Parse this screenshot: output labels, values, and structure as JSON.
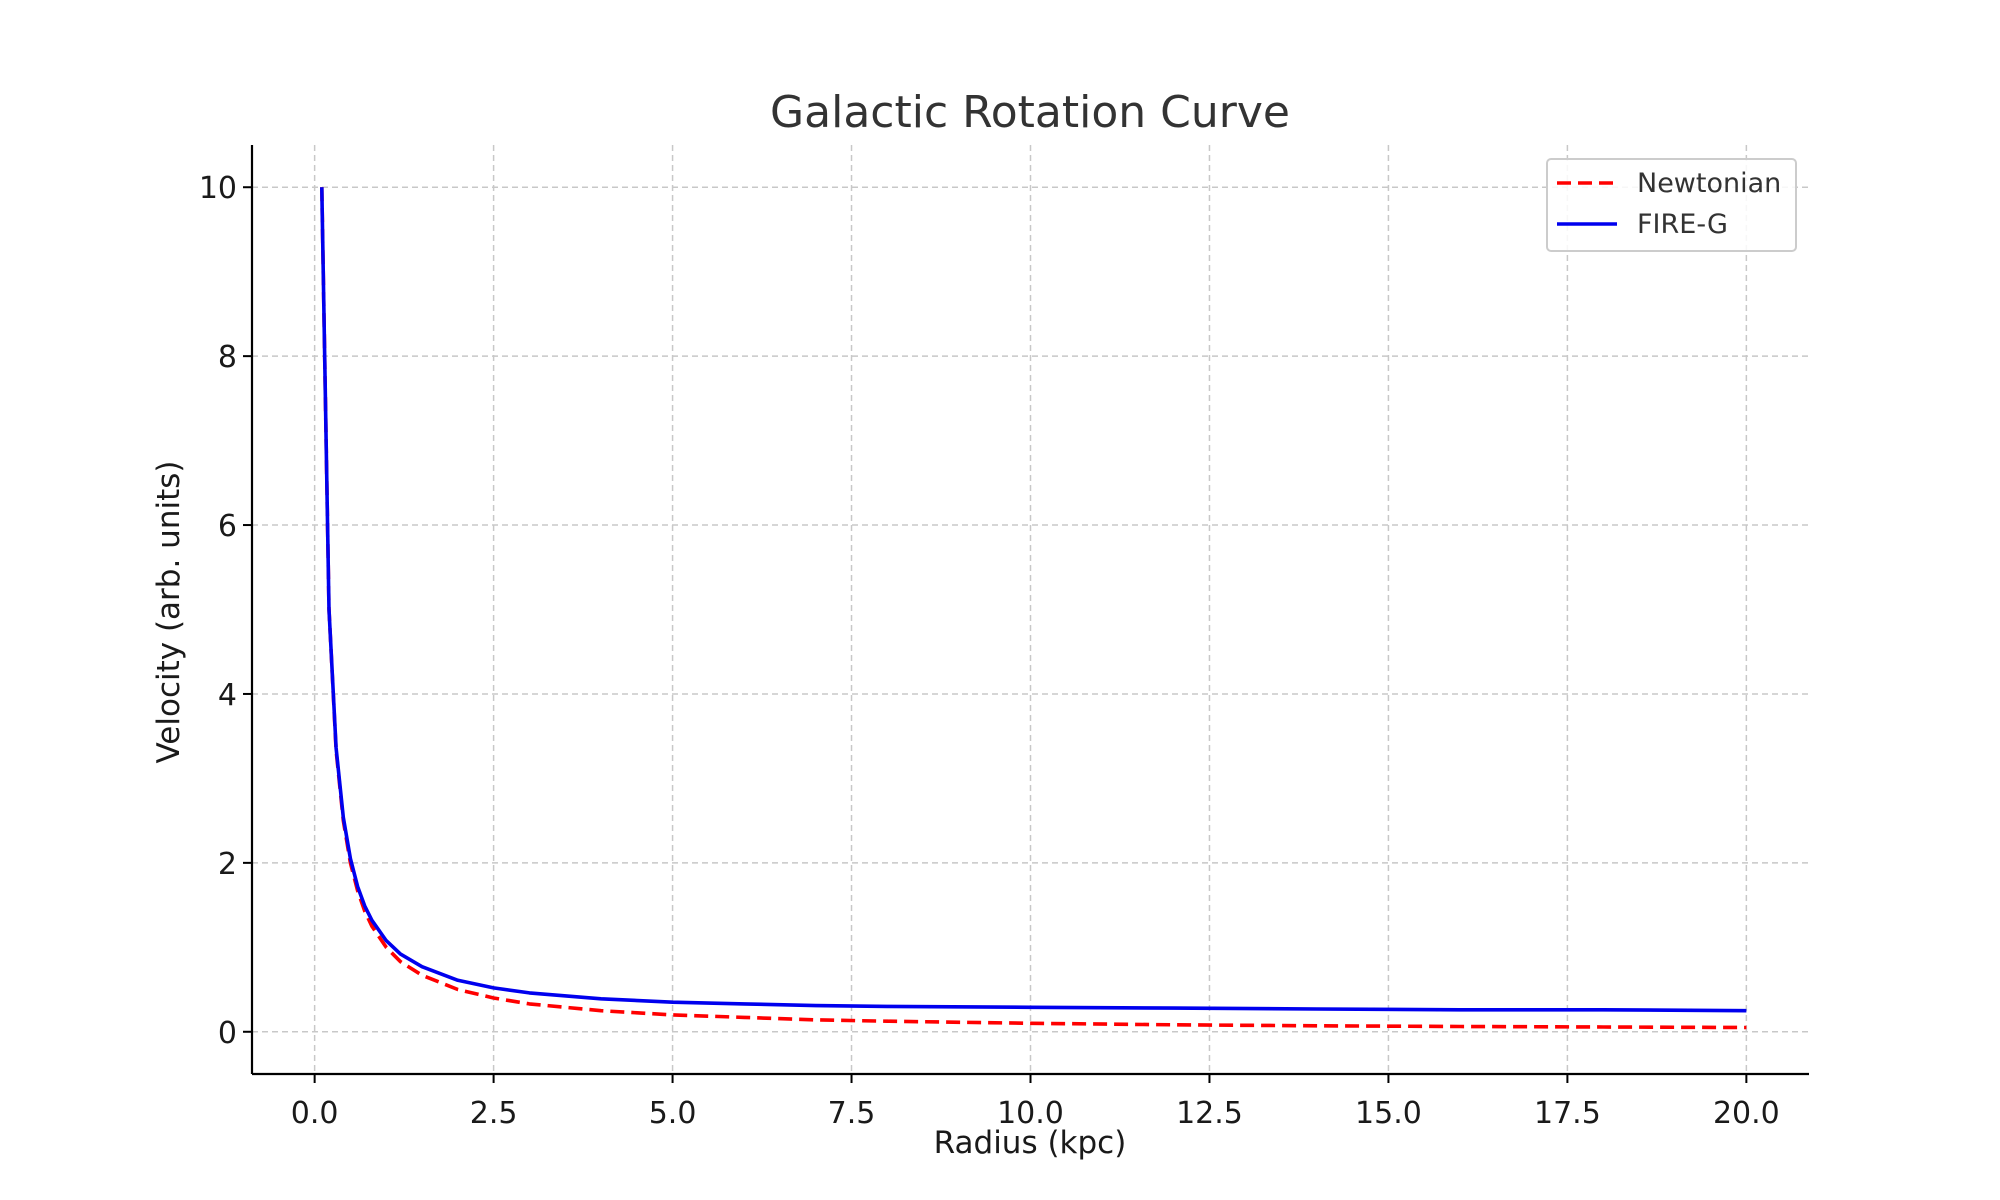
{
  "chart_data": {
    "type": "line",
    "title": "Galactic Rotation Curve",
    "xlabel": "Radius (kpc)",
    "ylabel": "Velocity (arb. units)",
    "xlim": [
      -0.875,
      20.875
    ],
    "ylim": [
      -0.5,
      10.5
    ],
    "xticks": [
      0.0,
      2.5,
      5.0,
      7.5,
      10.0,
      12.5,
      15.0,
      17.5,
      20.0
    ],
    "xtick_labels": [
      "0.0",
      "2.5",
      "5.0",
      "7.5",
      "10.0",
      "12.5",
      "15.0",
      "17.5",
      "20.0"
    ],
    "yticks": [
      0,
      2,
      4,
      6,
      8,
      10
    ],
    "ytick_labels": [
      "0",
      "2",
      "4",
      "6",
      "8",
      "10"
    ],
    "grid": true,
    "legend_position": "top-right",
    "series": [
      {
        "name": "Newtonian",
        "color": "#ff0000",
        "style": "dashed",
        "x": [
          0.1,
          0.2,
          0.3,
          0.4,
          0.5,
          0.6,
          0.7,
          0.8,
          1.0,
          1.2,
          1.5,
          2.0,
          2.5,
          3.0,
          4.0,
          5.0,
          6.0,
          7.0,
          8.0,
          10.0,
          12.0,
          14.0,
          16.0,
          18.0,
          20.0
        ],
        "y": [
          10.0,
          5.0,
          3.33,
          2.5,
          2.0,
          1.67,
          1.43,
          1.25,
          1.0,
          0.83,
          0.67,
          0.5,
          0.4,
          0.33,
          0.25,
          0.2,
          0.17,
          0.14,
          0.125,
          0.1,
          0.083,
          0.071,
          0.0625,
          0.056,
          0.05
        ]
      },
      {
        "name": "FIRE-G",
        "color": "#0000ee",
        "style": "solid",
        "x": [
          0.1,
          0.2,
          0.3,
          0.4,
          0.5,
          0.6,
          0.7,
          0.8,
          1.0,
          1.2,
          1.5,
          2.0,
          2.5,
          3.0,
          4.0,
          5.0,
          6.0,
          7.0,
          8.0,
          10.0,
          12.0,
          14.0,
          16.0,
          18.0,
          20.0
        ],
        "y": [
          10.0,
          5.0,
          3.36,
          2.54,
          2.05,
          1.72,
          1.49,
          1.32,
          1.08,
          0.92,
          0.77,
          0.61,
          0.52,
          0.46,
          0.39,
          0.35,
          0.33,
          0.31,
          0.3,
          0.29,
          0.28,
          0.27,
          0.26,
          0.26,
          0.25
        ]
      }
    ]
  }
}
